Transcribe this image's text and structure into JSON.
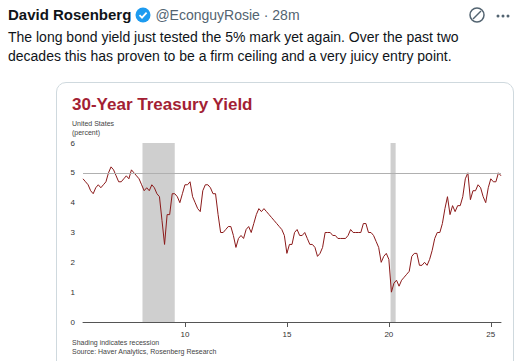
{
  "tweet": {
    "author": "David Rosenberg",
    "meta": "@EconguyRosie · 28m",
    "text_lines": [
      "The long bond yield just tested the 5% mark yet again. Over the past two",
      "decades this has proven to be a firm ceiling and a very juicy entry point."
    ]
  },
  "chart_data": {
    "type": "line",
    "title": "30-Year Treasury Yield",
    "subtitle_lines": [
      "United States",
      "(percent)"
    ],
    "notes": [
      "Shading indicates recession",
      "Source: Haver Analytics, Rosenberg Research"
    ],
    "x": [
      2005,
      2005.125,
      2005.25,
      2005.375,
      2005.5,
      2005.625,
      2005.75,
      2005.875,
      2006,
      2006.125,
      2006.25,
      2006.375,
      2006.5,
      2006.625,
      2006.75,
      2006.875,
      2007,
      2007.125,
      2007.25,
      2007.375,
      2007.5,
      2007.625,
      2007.75,
      2007.875,
      2008,
      2008.125,
      2008.25,
      2008.375,
      2008.5,
      2008.625,
      2008.75,
      2008.875,
      2009,
      2009.125,
      2009.25,
      2009.375,
      2009.5,
      2009.625,
      2009.75,
      2009.875,
      2010,
      2010.125,
      2010.25,
      2010.375,
      2010.5,
      2010.625,
      2010.75,
      2010.875,
      2011,
      2011.125,
      2011.25,
      2011.375,
      2011.5,
      2011.625,
      2011.75,
      2011.875,
      2012,
      2012.125,
      2012.25,
      2012.375,
      2012.5,
      2012.625,
      2012.75,
      2012.875,
      2013,
      2013.125,
      2013.25,
      2013.375,
      2013.5,
      2013.625,
      2013.75,
      2013.875,
      2014,
      2014.125,
      2014.25,
      2014.375,
      2014.5,
      2014.625,
      2014.75,
      2014.875,
      2015,
      2015.125,
      2015.25,
      2015.375,
      2015.5,
      2015.625,
      2015.75,
      2015.875,
      2016,
      2016.125,
      2016.25,
      2016.375,
      2016.5,
      2016.625,
      2016.75,
      2016.875,
      2017,
      2017.125,
      2017.25,
      2017.375,
      2017.5,
      2017.625,
      2017.75,
      2017.875,
      2018,
      2018.125,
      2018.25,
      2018.375,
      2018.5,
      2018.625,
      2018.75,
      2018.875,
      2019,
      2019.125,
      2019.25,
      2019.375,
      2019.5,
      2019.625,
      2019.75,
      2019.875,
      2020,
      2020.125,
      2020.25,
      2020.375,
      2020.5,
      2020.625,
      2020.75,
      2020.875,
      2021,
      2021.125,
      2021.25,
      2021.375,
      2021.5,
      2021.625,
      2021.75,
      2021.875,
      2022,
      2022.125,
      2022.25,
      2022.375,
      2022.5,
      2022.625,
      2022.75,
      2022.875,
      2023,
      2023.125,
      2023.25,
      2023.375,
      2023.5,
      2023.625,
      2023.75,
      2023.875,
      2024,
      2024.125,
      2024.25,
      2024.375,
      2024.5,
      2024.625,
      2024.75,
      2024.875,
      2025,
      2025.125,
      2025.25,
      2025.375,
      2025.5
    ],
    "values": [
      4.8,
      4.7,
      4.6,
      4.4,
      4.3,
      4.5,
      4.6,
      4.5,
      4.6,
      4.7,
      5.0,
      5.2,
      5.1,
      4.9,
      4.7,
      4.7,
      4.8,
      4.9,
      4.8,
      5.1,
      5.0,
      4.9,
      4.8,
      4.6,
      4.4,
      4.5,
      4.4,
      4.6,
      4.5,
      4.3,
      4.2,
      3.4,
      2.6,
      3.6,
      3.6,
      4.3,
      4.3,
      4.2,
      4.0,
      4.3,
      4.6,
      4.6,
      4.7,
      4.2,
      4.0,
      3.8,
      3.7,
      4.4,
      4.6,
      4.6,
      4.5,
      4.3,
      4.3,
      3.6,
      3.0,
      3.0,
      3.1,
      3.2,
      3.2,
      2.9,
      2.5,
      2.8,
      2.9,
      2.8,
      3.1,
      3.2,
      3.0,
      3.3,
      3.6,
      3.8,
      3.7,
      3.8,
      3.7,
      3.6,
      3.5,
      3.4,
      3.3,
      3.2,
      3.1,
      2.9,
      2.3,
      2.6,
      2.6,
      3.0,
      3.1,
      2.9,
      2.9,
      3.0,
      2.8,
      2.6,
      2.6,
      2.5,
      2.2,
      2.3,
      2.5,
      3.0,
      3.0,
      3.0,
      2.9,
      2.9,
      2.8,
      2.8,
      2.8,
      2.8,
      2.9,
      3.1,
      3.0,
      3.0,
      3.0,
      3.0,
      3.3,
      3.3,
      3.0,
      3.0,
      2.9,
      2.7,
      2.5,
      2.0,
      2.2,
      2.3,
      2.1,
      1.0,
      1.3,
      1.4,
      1.2,
      1.4,
      1.5,
      1.6,
      1.7,
      2.2,
      2.3,
      2.3,
      1.9,
      1.9,
      2.0,
      1.9,
      2.1,
      2.4,
      2.8,
      3.0,
      3.0,
      3.3,
      3.8,
      4.2,
      3.6,
      3.9,
      3.7,
      3.9,
      3.9,
      4.2,
      4.8,
      5.0,
      4.1,
      4.4,
      4.4,
      4.6,
      4.5,
      4.2,
      4.0,
      4.5,
      4.8,
      4.7,
      4.7,
      5.0,
      4.9
    ],
    "color": "#8b1a1a",
    "recessions": [
      [
        2007.917,
        2009.5
      ],
      [
        2020.083,
        2020.333
      ]
    ],
    "hline": 5,
    "xlim": [
      2005,
      2025.5
    ],
    "xticks": [
      {
        "value": 2010,
        "label": "10"
      },
      {
        "value": 2015,
        "label": "15"
      },
      {
        "value": 2020,
        "label": "20"
      },
      {
        "value": 2025,
        "label": "25"
      }
    ],
    "ylim": [
      0,
      6
    ],
    "yticks": [
      0,
      1,
      2,
      3,
      4,
      5,
      6
    ],
    "grid": false
  }
}
